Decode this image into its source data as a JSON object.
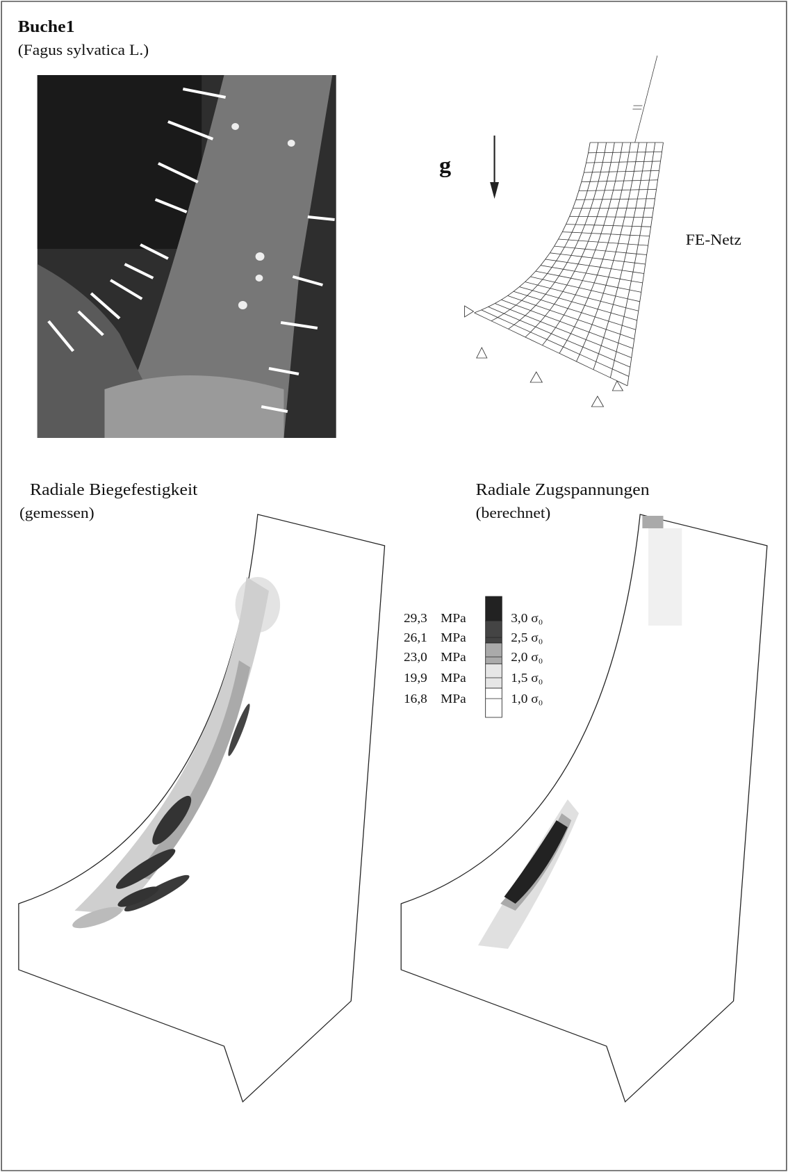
{
  "header": {
    "title": "Buche1",
    "subtitle": "(Fagus sylvatica L.)"
  },
  "fe_mesh": {
    "gravity": "g",
    "label": "FE-Netz"
  },
  "panels": [
    {
      "title": "Radiale Biegefestigkeit",
      "subtitle": "(gemessen)"
    },
    {
      "title": "Radiale Zugspannungen",
      "subtitle": "(berechnet)"
    }
  ],
  "legend": {
    "rows": [
      {
        "mpa": "29,3",
        "unit": "MPa",
        "sigma": "3,0 σ₀"
      },
      {
        "mpa": "26,1",
        "unit": "MPa",
        "sigma": "2,5 σ₀"
      },
      {
        "mpa": "23,0",
        "unit": "MPa",
        "sigma": "2,0 σ₀"
      },
      {
        "mpa": "19,9",
        "unit": "MPa",
        "sigma": "1,5 σ₀"
      },
      {
        "mpa": "16,8",
        "unit": "MPa",
        "sigma": "1,0 σ₀"
      }
    ]
  }
}
